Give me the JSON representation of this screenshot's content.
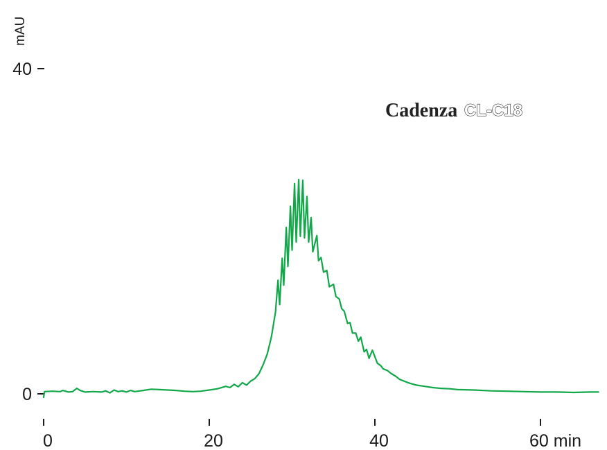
{
  "chart_data": {
    "type": "line",
    "title": "",
    "brand": {
      "name": "Cadenza",
      "model": "CL-C18"
    },
    "ylabel": "mAU",
    "xlabel": "",
    "x_unit": "min",
    "xlim": [
      0,
      67
    ],
    "ylim": [
      0,
      40
    ],
    "x_ticks": [
      0,
      20,
      40,
      60
    ],
    "x_tick_labels": [
      "0",
      "20",
      "40",
      "60 min"
    ],
    "y_ticks": [
      0,
      40
    ],
    "y_tick_labels": [
      "0",
      "40"
    ],
    "grid": false,
    "line_color": "#12a84a",
    "series": [
      {
        "values": [
          [
            0,
            -0.6
          ],
          [
            0.1,
            0.1
          ],
          [
            1,
            0.15
          ],
          [
            2,
            0.1
          ],
          [
            2.3,
            0.25
          ],
          [
            3,
            0.05
          ],
          [
            3.5,
            0.1
          ],
          [
            4,
            0.5
          ],
          [
            4.4,
            0.25
          ],
          [
            5,
            0.05
          ],
          [
            6,
            0.1
          ],
          [
            7,
            0.05
          ],
          [
            7.5,
            0.2
          ],
          [
            8,
            -0.05
          ],
          [
            8.5,
            0.3
          ],
          [
            9,
            0.1
          ],
          [
            9.5,
            0.2
          ],
          [
            10,
            0.05
          ],
          [
            10.5,
            0.25
          ],
          [
            11,
            0.1
          ],
          [
            12,
            0.25
          ],
          [
            13,
            0.4
          ],
          [
            14,
            0.35
          ],
          [
            15,
            0.3
          ],
          [
            16,
            0.25
          ],
          [
            17,
            0.15
          ],
          [
            18,
            0.1
          ],
          [
            19,
            0.15
          ],
          [
            20,
            0.3
          ],
          [
            21,
            0.45
          ],
          [
            22,
            0.75
          ],
          [
            22.5,
            0.6
          ],
          [
            23,
            1.0
          ],
          [
            23.5,
            0.7
          ],
          [
            24,
            1.2
          ],
          [
            24.5,
            0.9
          ],
          [
            25,
            1.4
          ],
          [
            25.5,
            1.7
          ],
          [
            26,
            2.3
          ],
          [
            26.5,
            3.4
          ],
          [
            27,
            4.7
          ],
          [
            27.5,
            6.8
          ],
          [
            28,
            9.9
          ],
          [
            28.3,
            13.8
          ],
          [
            28.5,
            10.8
          ],
          [
            28.8,
            16.5
          ],
          [
            29,
            13.2
          ],
          [
            29.3,
            20.3
          ],
          [
            29.5,
            15.5
          ],
          [
            29.8,
            22.9
          ],
          [
            30,
            17.5
          ],
          [
            30.3,
            25.7
          ],
          [
            30.5,
            18.5
          ],
          [
            30.8,
            26.2
          ],
          [
            31,
            19.2
          ],
          [
            31.3,
            26.1
          ],
          [
            31.5,
            19.0
          ],
          [
            31.8,
            24.1
          ],
          [
            32,
            18.5
          ],
          [
            32.3,
            21.5
          ],
          [
            32.5,
            17.3
          ],
          [
            33,
            19.3
          ],
          [
            33.2,
            16.2
          ],
          [
            33.5,
            16.6
          ],
          [
            33.8,
            14.8
          ],
          [
            34.2,
            15.0
          ],
          [
            34.5,
            13.0
          ],
          [
            35,
            13.3
          ],
          [
            35.3,
            11.8
          ],
          [
            35.7,
            11.5
          ],
          [
            36,
            10.3
          ],
          [
            36.3,
            10.0
          ],
          [
            36.7,
            8.5
          ],
          [
            37,
            8.6
          ],
          [
            37.3,
            7.3
          ],
          [
            37.7,
            7.3
          ],
          [
            38,
            6.3
          ],
          [
            38.3,
            6.8
          ],
          [
            38.7,
            5.0
          ],
          [
            39,
            5.3
          ],
          [
            39.3,
            4.2
          ],
          [
            39.7,
            5.2
          ],
          [
            40,
            4.4
          ],
          [
            40.3,
            3.6
          ],
          [
            40.7,
            3.3
          ],
          [
            41,
            2.9
          ],
          [
            41.5,
            2.7
          ],
          [
            42,
            2.3
          ],
          [
            42.5,
            2.0
          ],
          [
            43,
            1.6
          ],
          [
            44,
            1.2
          ],
          [
            45,
            0.9
          ],
          [
            46,
            0.75
          ],
          [
            47,
            0.6
          ],
          [
            48,
            0.5
          ],
          [
            49,
            0.45
          ],
          [
            50,
            0.35
          ],
          [
            52,
            0.3
          ],
          [
            54,
            0.2
          ],
          [
            56,
            0.15
          ],
          [
            58,
            0.1
          ],
          [
            60,
            0.05
          ],
          [
            62,
            0.05
          ],
          [
            64,
            0.0
          ],
          [
            66,
            0.05
          ],
          [
            67,
            0.05
          ]
        ]
      }
    ]
  }
}
